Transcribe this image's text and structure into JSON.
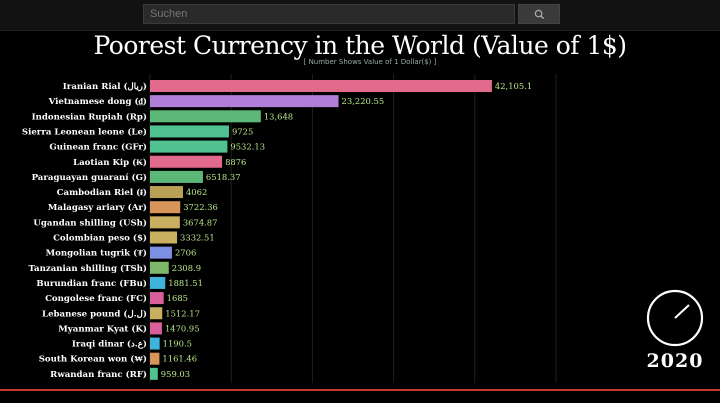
{
  "search": {
    "placeholder": "Suchen"
  },
  "chart_data": {
    "type": "bar",
    "orientation": "horizontal",
    "title": "Poorest Currency in the World (Value of 1$)",
    "subtitle": "[ Number Shows Value of 1 Dollar($) ]",
    "xlim": [
      0,
      50000
    ],
    "grid": true,
    "categories": [
      "Iranian Rial (ریال)",
      "Vietnamese dong (₫)",
      "Indonesian Rupiah (Rp)",
      "Sierra Leonean leone (Le)",
      "Guinean franc (GFr)",
      "Laotian Kip (₭)",
      "Paraguayan guaraní (G)",
      "Cambodian Riel (៛)",
      "Malagasy ariary (Ar)",
      "Ugandan shilling (USh)",
      "Colombian peso ($)",
      "Mongolian tugrik (₮)",
      "Tanzanian shilling (TSh)",
      "Burundian franc (FBu)",
      "Congolese franc (FC)",
      "Lebanese pound (ل.ل)",
      "Myanmar Kyat (K)",
      "Iraqi dinar (ع.د)",
      "South Korean won (₩)",
      "Rwandan franc (RF)"
    ],
    "values": [
      42105.1,
      23220.55,
      13648,
      9725,
      9532.13,
      8876,
      6518.37,
      4062,
      3722.36,
      3674.87,
      3332.51,
      2706,
      2308.9,
      1881.51,
      1685,
      1512.17,
      1470.95,
      1190.5,
      1161.46,
      959.03
    ],
    "value_labels": [
      "42,105.1",
      "23,220.55",
      "13,648",
      "9725",
      "9532.13",
      "8876",
      "6518.37",
      "4062",
      "3722.36",
      "3674.87",
      "3332.51",
      "2706",
      "2308.9",
      "1881.51",
      "1685",
      "1512.17",
      "1470.95",
      "1190.5",
      "1161.46",
      "959.03"
    ],
    "colors": [
      "#e26a8d",
      "#b07fd9",
      "#5bb878",
      "#4fc290",
      "#4fc290",
      "#e26a8d",
      "#5bb878",
      "#b8a055",
      "#d8955a",
      "#c9b060",
      "#c9b060",
      "#7d8fe0",
      "#7db86a",
      "#3fb3d9",
      "#d85f9a",
      "#c9b060",
      "#d85f9a",
      "#3fb3d9",
      "#d8955a",
      "#4fc290"
    ]
  },
  "year": "2020"
}
